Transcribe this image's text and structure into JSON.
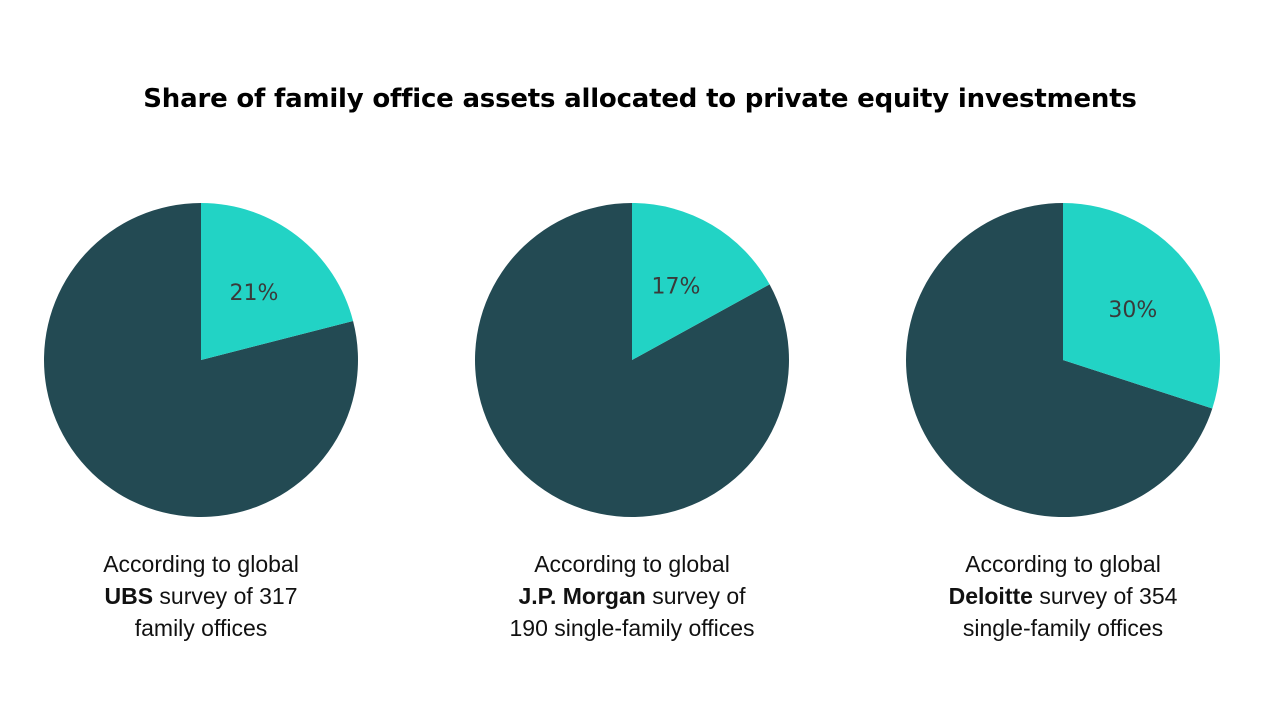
{
  "chart_data": {
    "type": "pie",
    "title": "Share of family office assets allocated to private equity investments",
    "colors": {
      "highlight": "#22d3c5",
      "remainder": "#234a53"
    },
    "pies": [
      {
        "value": 21,
        "label": "21%",
        "caption": {
          "line1": "According to global",
          "org": "UBS",
          "line2_rest": " survey of 317",
          "line3": "family offices"
        }
      },
      {
        "value": 17,
        "label": "17%",
        "caption": {
          "line1": "According to global",
          "org": "J.P. Morgan",
          "line2_rest": " survey of",
          "line3": "190 single-family offices"
        }
      },
      {
        "value": 30,
        "label": "30%",
        "caption": {
          "line1": "According to global",
          "org": "Deloitte",
          "line2_rest": " survey of 354",
          "line3": "single-family offices"
        }
      }
    ]
  }
}
